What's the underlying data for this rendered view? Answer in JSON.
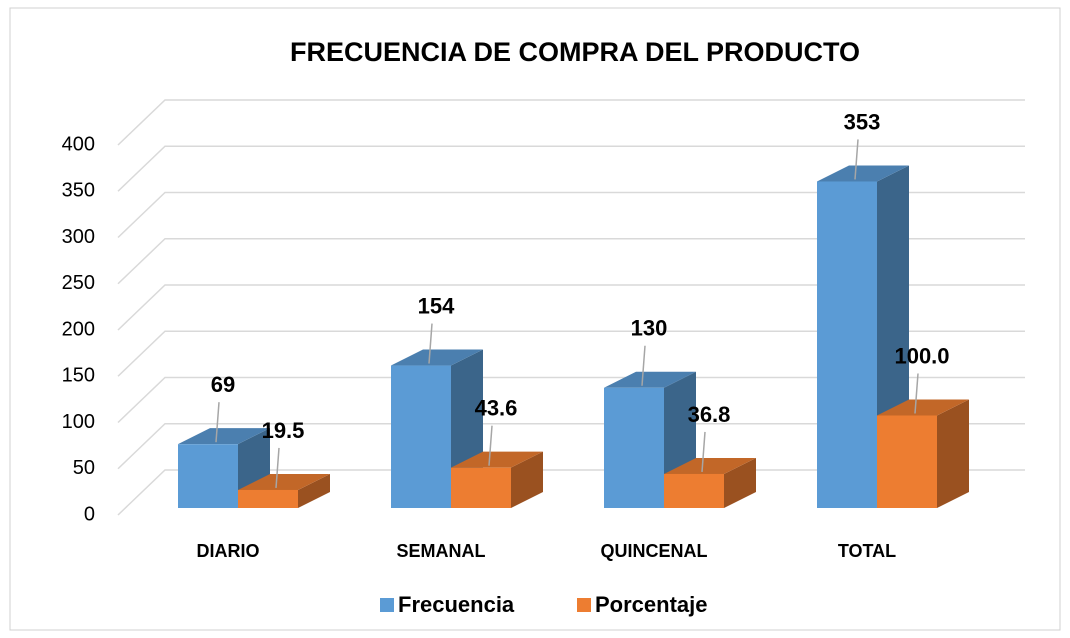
{
  "chart_data": {
    "type": "bar3d",
    "title": "FRECUENCIA DE COMPRA DEL PRODUCTO",
    "categories": [
      "DIARIO",
      "SEMANAL",
      "QUINCENAL",
      "TOTAL"
    ],
    "series": [
      {
        "name": "Frecuencia",
        "color": "#5b9bd5",
        "values": [
          69,
          154,
          130,
          353
        ]
      },
      {
        "name": "Porcentaje",
        "color": "#ed7d31",
        "values": [
          19.5,
          43.6,
          36.8,
          100.0
        ],
        "value_labels": [
          "19.5",
          "43.6",
          "36.8",
          "100.0"
        ]
      }
    ],
    "ylim": [
      0,
      400
    ],
    "yticks": [
      0,
      50,
      100,
      150,
      200,
      250,
      300,
      350,
      400
    ],
    "grid": true,
    "legend": "bottom"
  }
}
